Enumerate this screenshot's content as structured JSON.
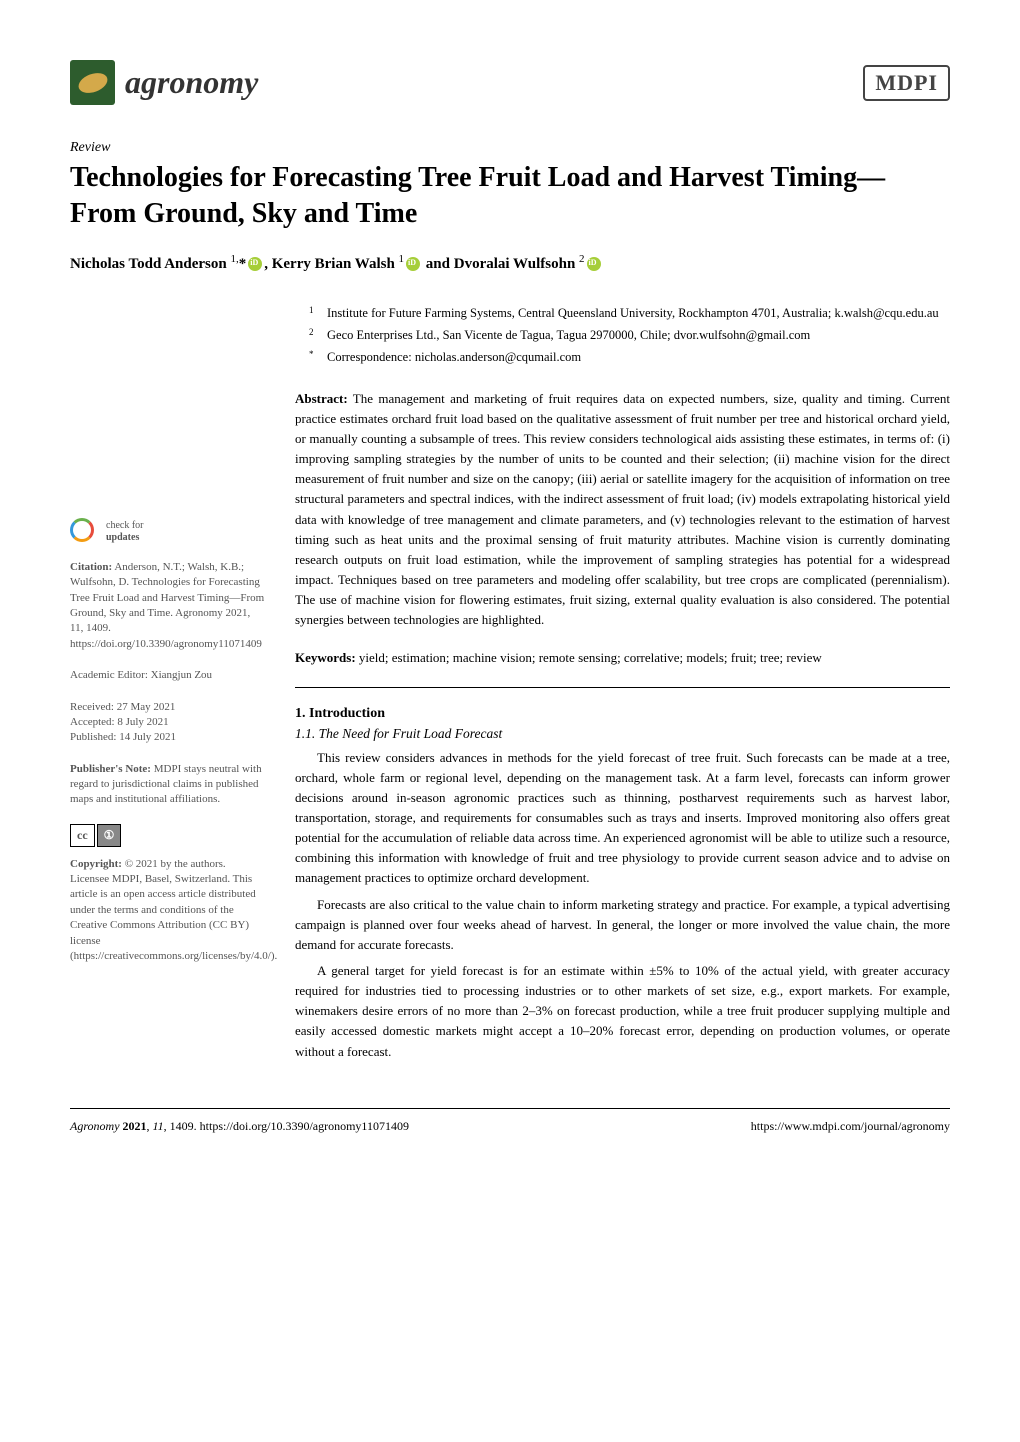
{
  "journal": {
    "name": "agronomy",
    "publisher_logo": "MDPI"
  },
  "article": {
    "type": "Review",
    "title": "Technologies for Forecasting Tree Fruit Load and Harvest Timing—From Ground, Sky and Time",
    "authors_html": "Nicholas Todd Anderson <sup>1,</sup>*",
    "author2": ", Kerry Brian Walsh ",
    "author2_sup": "1",
    "author3": " and Dvoralai Wulfsohn ",
    "author3_sup": "2"
  },
  "affiliations": {
    "a1_sup": "1",
    "a1_text": "Institute for Future Farming Systems, Central Queensland University, Rockhampton 4701, Australia; k.walsh@cqu.edu.au",
    "a2_sup": "2",
    "a2_text": "Geco Enterprises Ltd., San Vicente de Tagua, Tagua 2970000, Chile; dvor.wulfsohn@gmail.com",
    "corr_sup": "*",
    "corr_text": "Correspondence: nicholas.anderson@cqumail.com"
  },
  "abstract": {
    "label": "Abstract:",
    "text": " The management and marketing of fruit requires data on expected numbers, size, quality and timing. Current practice estimates orchard fruit load based on the qualitative assessment of fruit number per tree and historical orchard yield, or manually counting a subsample of trees. This review considers technological aids assisting these estimates, in terms of: (i) improving sampling strategies by the number of units to be counted and their selection; (ii) machine vision for the direct measurement of fruit number and size on the canopy; (iii) aerial or satellite imagery for the acquisition of information on tree structural parameters and spectral indices, with the indirect assessment of fruit load; (iv) models extrapolating historical yield data with knowledge of tree management and climate parameters, and (v) technologies relevant to the estimation of harvest timing such as heat units and the proximal sensing of fruit maturity attributes. Machine vision is currently dominating research outputs on fruit load estimation, while the improvement of sampling strategies has potential for a widespread impact. Techniques based on tree parameters and modeling offer scalability, but tree crops are complicated (perennialism). The use of machine vision for flowering estimates, fruit sizing, external quality evaluation is also considered. The potential synergies between technologies are highlighted."
  },
  "keywords": {
    "label": "Keywords:",
    "text": " yield; estimation; machine vision; remote sensing; correlative; models; fruit; tree; review"
  },
  "sections": {
    "s1_heading": "1. Introduction",
    "s1_1_heading": "1.1. The Need for Fruit Load Forecast",
    "p1": "This review considers advances in methods for the yield forecast of tree fruit. Such forecasts can be made at a tree, orchard, whole farm or regional level, depending on the management task. At a farm level, forecasts can inform grower decisions around in-season agronomic practices such as thinning, postharvest requirements such as harvest labor, transportation, storage, and requirements for consumables such as trays and inserts. Improved monitoring also offers great potential for the accumulation of reliable data across time. An experienced agronomist will be able to utilize such a resource, combining this information with knowledge of fruit and tree physiology to provide current season advice and to advise on management practices to optimize orchard development.",
    "p2": "Forecasts are also critical to the value chain to inform marketing strategy and practice. For example, a typical advertising campaign is planned over four weeks ahead of harvest. In general, the longer or more involved the value chain, the more demand for accurate forecasts.",
    "p3": "A general target for yield forecast is for an estimate within ±5% to 10% of the actual yield, with greater accuracy required for industries tied to processing industries or to other markets of set size, e.g., export markets. For example, winemakers desire errors of no more than 2–3% on forecast production, while a tree fruit producer supplying multiple and easily accessed domestic markets might accept a 10–20% forecast error, depending on production volumes, or operate without a forecast."
  },
  "sidebar": {
    "check_updates": "check for\nupdates",
    "citation_label": "Citation:",
    "citation": " Anderson, N.T.; Walsh, K.B.; Wulfsohn, D. Technologies for Forecasting Tree Fruit Load and Harvest Timing—From Ground, Sky and Time. Agronomy 2021, 11, 1409. https://doi.org/10.3390/agronomy11071409",
    "editor_label": "Academic Editor: ",
    "editor": "Xiangjun Zou",
    "received_label": "Received: ",
    "received": "27 May 2021",
    "accepted_label": "Accepted: ",
    "accepted": "8 July 2021",
    "published_label": "Published: ",
    "published": "14 July 2021",
    "pubnote_label": "Publisher's Note:",
    "pubnote": " MDPI stays neutral with regard to jurisdictional claims in published maps and institutional affiliations.",
    "cc_cc": "cc",
    "cc_by": "①",
    "copyright_label": "Copyright:",
    "copyright": " © 2021 by the authors. Licensee MDPI, Basel, Switzerland. This article is an open access article distributed under the terms and conditions of the Creative Commons Attribution (CC BY) license (https://creativecommons.org/licenses/by/4.0/)."
  },
  "footer": {
    "left": "Agronomy 2021, 11, 1409. https://doi.org/10.3390/agronomy11071409",
    "right": "https://www.mdpi.com/journal/agronomy"
  }
}
